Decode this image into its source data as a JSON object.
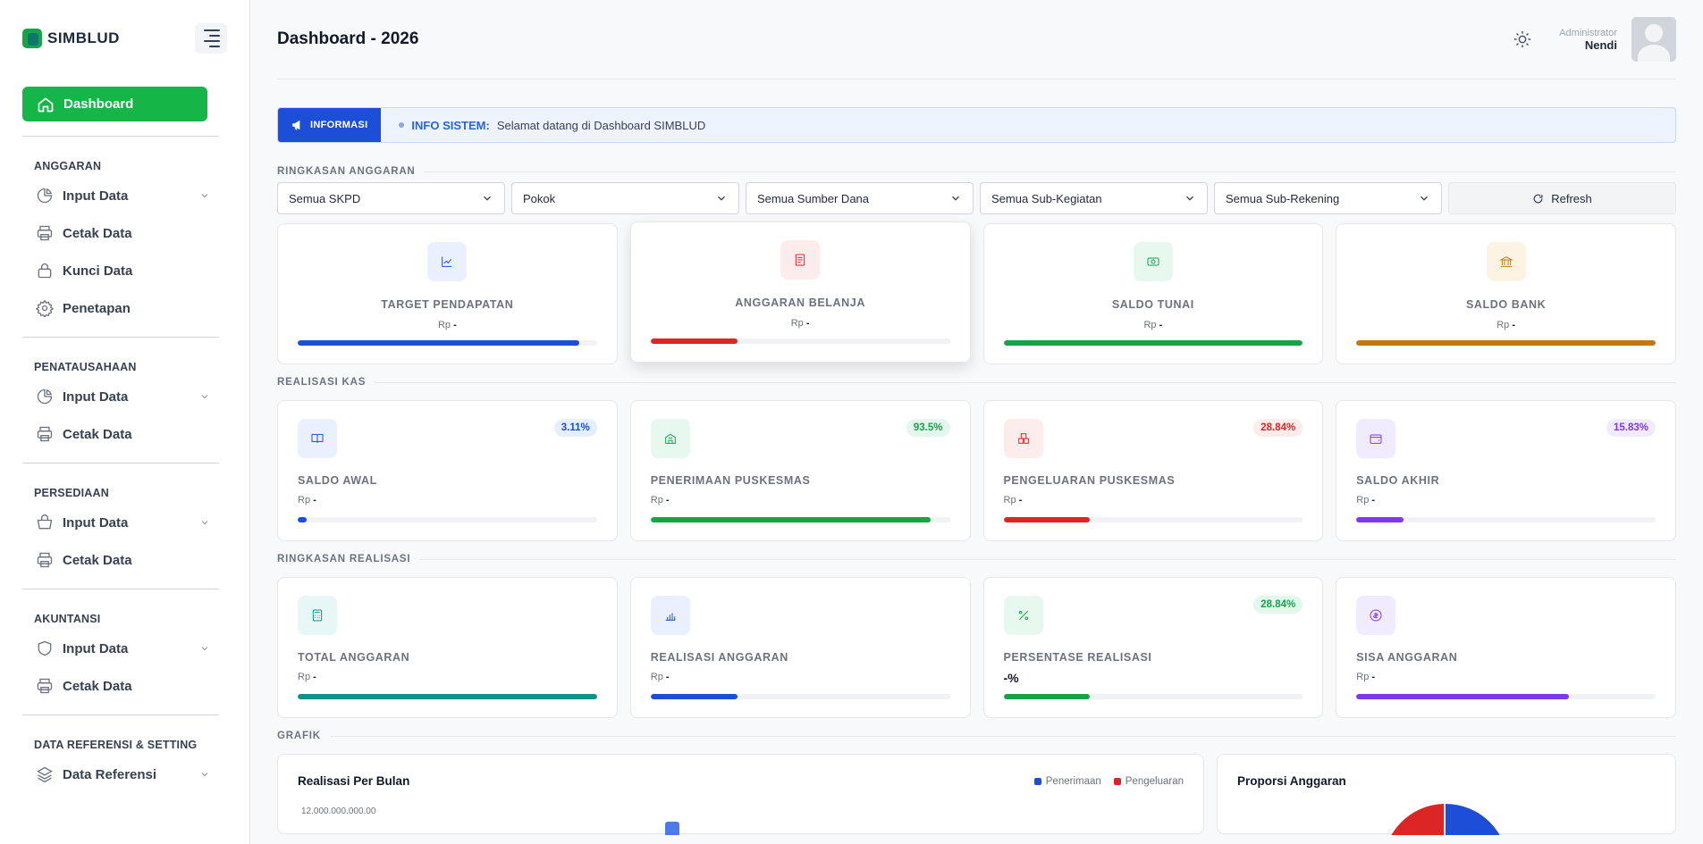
{
  "sidebar": {
    "logo": "SIMBLUD",
    "dashboard_label": "Dashboard",
    "sections": [
      {
        "title": "ANGGARAN",
        "items": [
          {
            "label": "Input Data",
            "icon": "pie-chart-icon",
            "expandable": true
          },
          {
            "label": "Cetak Data",
            "icon": "printer-icon",
            "expandable": false
          },
          {
            "label": "Kunci Data",
            "icon": "lock-icon",
            "expandable": false
          },
          {
            "label": "Penetapan",
            "icon": "gear-icon",
            "expandable": false
          }
        ]
      },
      {
        "title": "PENATAUSAHAAN",
        "items": [
          {
            "label": "Input Data",
            "icon": "pie-chart-icon",
            "expandable": true
          },
          {
            "label": "Cetak Data",
            "icon": "printer-icon",
            "expandable": false
          }
        ]
      },
      {
        "title": "PERSEDIAAN",
        "items": [
          {
            "label": "Input Data",
            "icon": "basket-icon",
            "expandable": true
          },
          {
            "label": "Cetak Data",
            "icon": "printer-icon",
            "expandable": false
          }
        ]
      },
      {
        "title": "AKUNTANSI",
        "items": [
          {
            "label": "Input Data",
            "icon": "shield-icon",
            "expandable": true
          },
          {
            "label": "Cetak Data",
            "icon": "printer-icon",
            "expandable": false
          }
        ]
      },
      {
        "title": "DATA REFERENSI & SETTING",
        "items": [
          {
            "label": "Data Referensi",
            "icon": "layers-icon",
            "expandable": true
          }
        ]
      }
    ]
  },
  "header": {
    "title": "Dashboard - 2026",
    "user_role": "Administrator",
    "user_name": "Nendi"
  },
  "info": {
    "tag": "INFORMASI",
    "label": "INFO SISTEM:",
    "message": "Selamat datang di Dashboard SIMBLUD"
  },
  "ringkasan_anggaran": {
    "title": "RINGKASAN ANGGARAN",
    "filters": [
      "Semua SKPD",
      "Pokok",
      "Semua Sumber Dana",
      "Semua Sub-Kegiatan",
      "Semua Sub-Rekening"
    ],
    "refresh_label": "Refresh",
    "cards": [
      {
        "title": "TARGET PENDAPATAN",
        "prefix": "Rp",
        "value": "-",
        "progress": 0.94,
        "color": "#1d4ed8",
        "bg": "#eaf0ff",
        "icon": "chart-line-icon"
      },
      {
        "title": "ANGGARAN BELANJA",
        "prefix": "Rp",
        "value": "-",
        "progress": 0.29,
        "color": "#dc2626",
        "bg": "#fdecec",
        "icon": "document-icon"
      },
      {
        "title": "SALDO TUNAI",
        "prefix": "Rp",
        "value": "-",
        "progress": 1.0,
        "color": "#16a34a",
        "bg": "#e7f8ef",
        "icon": "cash-icon"
      },
      {
        "title": "SALDO BANK",
        "prefix": "Rp",
        "value": "-",
        "progress": 1.0,
        "color": "#c2780a",
        "bg": "#fdf3e3",
        "icon": "bank-icon"
      }
    ]
  },
  "realisasi_kas": {
    "title": "REALISASI KAS",
    "cards": [
      {
        "title": "SALDO AWAL",
        "prefix": "Rp",
        "value": "-",
        "badge": "3.11%",
        "progress": 0.031,
        "color": "#1d4ed8",
        "bg": "#eaf0ff",
        "badge_bg": "#e6efff",
        "icon": "book-icon"
      },
      {
        "title": "PENERIMAAN PUSKESMAS",
        "prefix": "Rp",
        "value": "-",
        "badge": "93.5%",
        "progress": 0.935,
        "color": "#16a34a",
        "bg": "#e7f8ef",
        "badge_bg": "#e3f7ec",
        "icon": "building-icon"
      },
      {
        "title": "PENGELUARAN PUSKESMAS",
        "prefix": "Rp",
        "value": "-",
        "badge": "28.84%",
        "progress": 0.2884,
        "color": "#dc2626",
        "bg": "#fdecec",
        "badge_bg": "#fdecec",
        "icon": "boxes-icon"
      },
      {
        "title": "SALDO AKHIR",
        "prefix": "Rp",
        "value": "-",
        "badge": "15.83%",
        "progress": 0.1583,
        "color": "#7c3aed",
        "bg": "#f1ebff",
        "badge_bg": "#f1ebff",
        "icon": "wallet-icon"
      }
    ]
  },
  "ringkasan_realisasi": {
    "title": "RINGKASAN REALISASI",
    "cards": [
      {
        "title": "TOTAL ANGGARAN",
        "prefix": "Rp",
        "value": "-",
        "badge": "",
        "progress": 1.0,
        "color": "#0d9488",
        "bg": "#e6f7f6",
        "icon": "calculator-icon"
      },
      {
        "title": "REALISASI ANGGARAN",
        "prefix": "Rp",
        "value": "-",
        "badge": "",
        "progress": 0.29,
        "color": "#1d4ed8",
        "bg": "#eaf0ff",
        "icon": "bar-chart-icon"
      },
      {
        "title": "PERSENTASE REALISASI",
        "prefix": "",
        "value": "-%",
        "badge": "28.84%",
        "progress": 0.2884,
        "color": "#16a34a",
        "bg": "#e7f8ef",
        "badge_bg": "#e3f7ec",
        "icon": "percent-icon"
      },
      {
        "title": "SISA ANGGARAN",
        "prefix": "Rp",
        "value": "-",
        "badge": "",
        "progress": 0.71,
        "color": "#7c3aed",
        "bg": "#f1ebff",
        "icon": "coin-icon"
      }
    ]
  },
  "grafik": {
    "title": "GRAFIK",
    "line_chart": {
      "title": "Realisasi Per Bulan",
      "legend": [
        "Penerimaan",
        "Pengeluaran"
      ],
      "legend_colors": [
        "#1d4ed8",
        "#dc2626"
      ],
      "y_top_label": "12.000.000.000,00"
    },
    "pie_chart": {
      "title": "Proporsi Anggaran",
      "colors": [
        "#1d4ed8",
        "#dc2626"
      ]
    }
  }
}
